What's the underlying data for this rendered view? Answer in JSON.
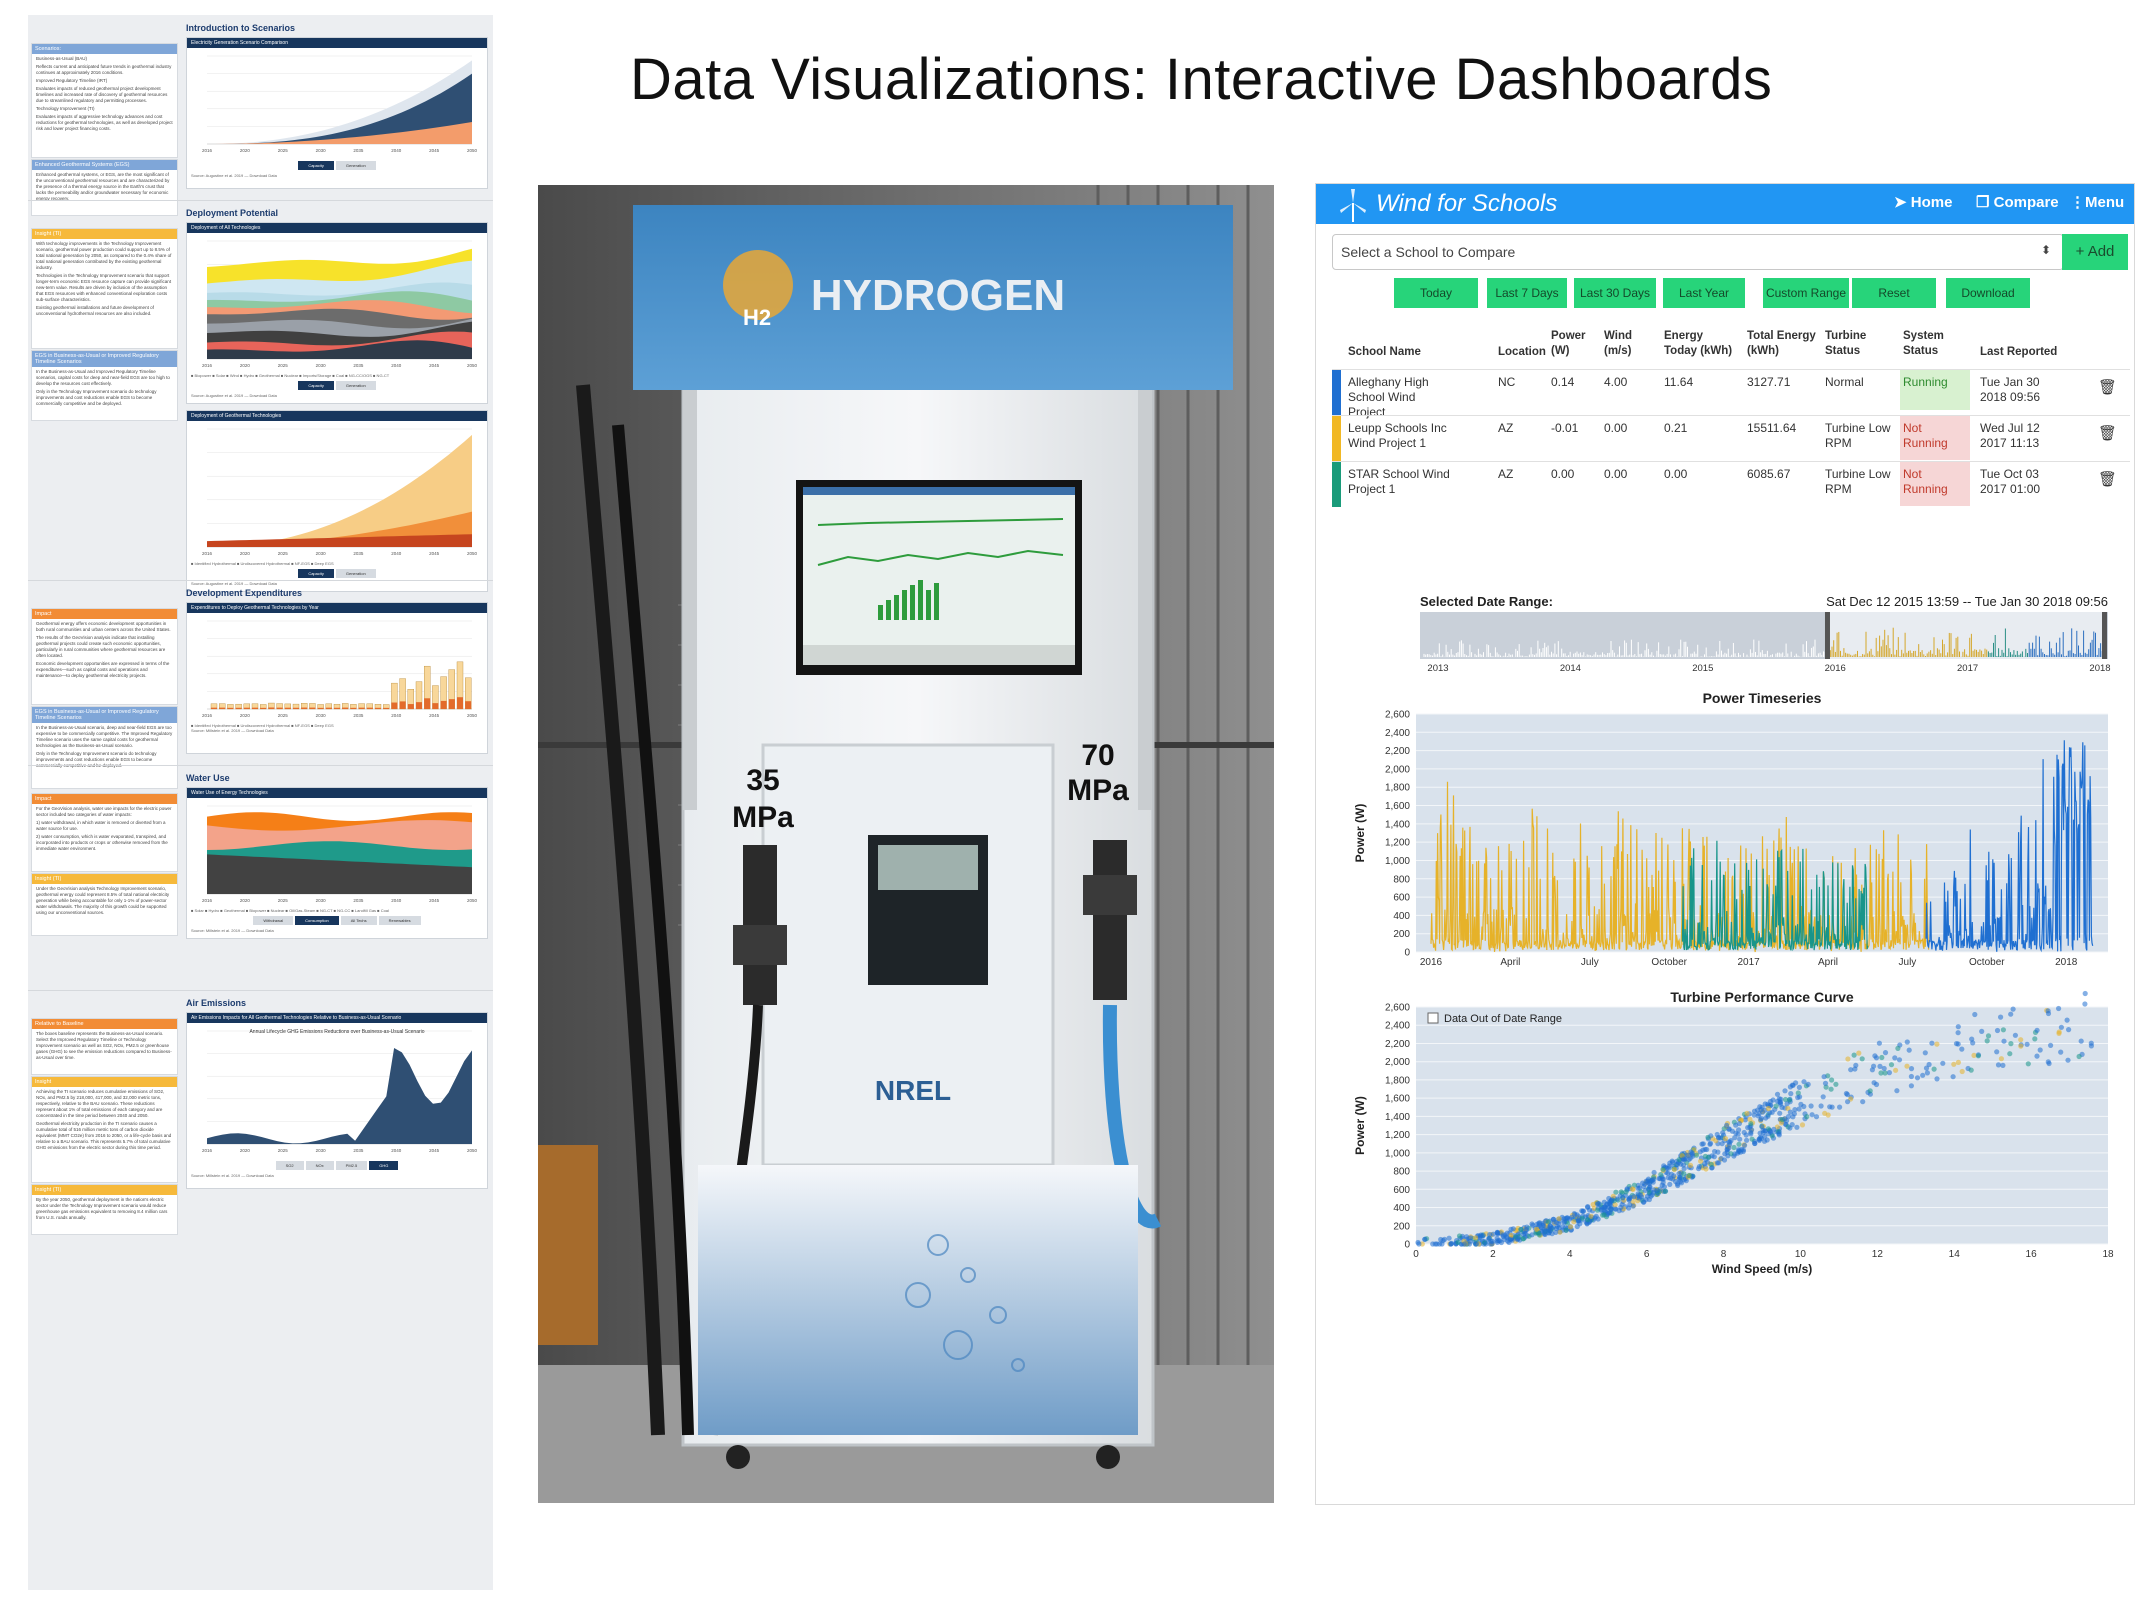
{
  "page": {
    "title": "Data Visualizations: Interactive Dashboards"
  },
  "left_report": {
    "sections": [
      {
        "title": "Introduction to Scenarios",
        "notes": [
          {
            "header": "Scenarios:",
            "color": "blue",
            "lines": [
              "Business-as-Usual (BAU)",
              "Reflects current and anticipated future trends in geothermal industry continues at approximately 2016 conditions.",
              "Improved Regulatory Timeline (IRT)",
              "Evaluates impacts of reduced geothermal project development timelines and increased rate of discovery of geothermal resources due to streamlined regulatory and permitting processes.",
              "Technology Improvement (TI)",
              "Evaluates impacts of aggressive technology advances and cost reductions for geothermal technologies, as well as developed project risk and lower project financing costs."
            ]
          },
          {
            "header": "Enhanced Geothermal Systems (EGS)",
            "color": "blue",
            "lines": [
              "Enhanced geothermal systems, or EGS, are the most significant of the unconventional geothermal resources and are characterized by the presence of a thermal energy source in the Earth's crust that lacks the permeability and/or groundwater necessary for economic energy recovery."
            ]
          }
        ],
        "card": {
          "header": "Electricity Generation Scenario Comparison",
          "tabs": [
            "Capacity",
            "Generation"
          ],
          "source": "Source: Augustine et al. 2019"
        }
      },
      {
        "title": "Deployment Potential",
        "notes": [
          {
            "header": "Insight (TI)",
            "color": "gold",
            "lines": [
              "With technology improvements in the Technology Improvement scenario, geothermal power production could support up to 8.5% of total national generation by 2050, as compared to the 0.4% share of total national generation contributed by the existing geothermal industry.",
              "Technologies in the Technology Improvement scenario that support longer-term economic EGS resource capture can provide significant new-term value. Results are driven by inclusion of the assumption that EGS resources with enhanced conventional exploration costs sub-surface characteristics.",
              "Existing geothermal installations and future development of unconventional hydrothermal resources are also included."
            ]
          },
          {
            "header": "EGS in Business-as-Usual or Improved Regulatory Timeline Scenarios",
            "color": "blue",
            "lines": [
              "In the Business-as-Usual and Improved Regulatory Timeline scenarios, capital costs for deep and near-field EGS are too high to develop the resources cost effectively.",
              "Only in the Technology Improvement scenario do technology improvements and cost reductions enable EGS to become commercially competitive and be deployed."
            ]
          }
        ],
        "cards": [
          {
            "header": "Deployment of All Technologies",
            "legend": [
              "Biopower",
              "Solar",
              "Wind",
              "Hydro",
              "Geothermal",
              "Nuclear",
              "Imports/Storage",
              "Coal",
              "NG-CC/OGS",
              "NG-CT"
            ],
            "tabs": [
              "Capacity",
              "Generation"
            ],
            "source": "Source: Augustine et al. 2019"
          },
          {
            "header": "Deployment of Geothermal Technologies",
            "legend": [
              "Identified Hydrothermal",
              "Undiscovered Hydrothermal",
              "NF-EGS",
              "Deep EGS"
            ],
            "tabs": [
              "Capacity",
              "Generation"
            ],
            "source": "Source: Augustine et al. 2019"
          }
        ]
      },
      {
        "title": "Development Expenditures",
        "notes": [
          {
            "header": "Impact",
            "color": "orange",
            "lines": [
              "Geothermal energy offers economic development opportunities in both rural communities and urban centers across the United States.",
              "The results of the GeoVision analysis indicate that installing geothermal projects could create such economic opportunities, particularly in rural communities where geothermal resources are often located.",
              "Economic development opportunities are expressed in terms of the expenditures—such as capital costs and operations and maintenance—to deploy geothermal electricity projects."
            ]
          },
          {
            "header": "EGS in Business-as-Usual or Improved Regulatory Timeline Scenarios",
            "color": "blue",
            "lines": [
              "In the Business-as-Usual scenario, deep and near-field EGS are too expensive to be commercially competitive. The Improved Regulatory Timeline scenario uses the same capital costs for geothermal technologies as the Business-as-Usual scenario.",
              "Only in the Technology Improvement scenario do technology improvements and cost reductions enable EGS to become commercially competitive and be deployed."
            ]
          }
        ],
        "card": {
          "header": "Expenditures to Deploy Geothermal Technologies by Year",
          "legend": [
            "Identified Hydrothermal",
            "Undiscovered Hydrothermal",
            "NF-EGS",
            "Deep EGS"
          ],
          "source": "Source: Millstein et al. 2019"
        }
      },
      {
        "title": "Water Use",
        "notes": [
          {
            "header": "Impact",
            "color": "orange",
            "lines": [
              "For the GeoVision analysis, water use impacts for the electric power sector included two categories of water impacts:",
              "1) water withdrawal, in which water is removed or diverted from a water source for use.",
              "2) water consumption, which is water evaporated, transpired, and incorporated into products or crops or otherwise removed from the immediate water environment."
            ]
          },
          {
            "header": "Insight (TI)",
            "color": "gold",
            "lines": [
              "Under the GeoVision analysis Technology Improvement scenario, geothermal energy could represent 8.5% of total national electricity generation while being accountable for only 1-1% of power-sector water withdrawals. The majority of this growth could be supported using our unconventional sources."
            ]
          }
        ],
        "card": {
          "header": "Water Use of Energy Technologies",
          "legend": [
            "Solar",
            "Hydro",
            "Geothermal",
            "Biopower",
            "Nuclear",
            "Oil/Gas-Steam",
            "NG-CT",
            "NG-CC",
            "Landfill Gas",
            "Coal"
          ],
          "tabs": [
            "Withdrawal",
            "Consumption",
            "All Techs",
            "Renewables"
          ],
          "source": "Source: Millstein et al. 2019"
        }
      },
      {
        "title": "Air Emissions",
        "notes": [
          {
            "header": "Relative to Baseline",
            "color": "orange",
            "lines": [
              "The boxes baseline represents the Business-as-Usual scenario. Select the Improved Regulatory Timeline or Technology Improvement scenario as well as SO2, NOx, PM2.5 or greenhouse gases (GHG) to see the emission reductions compared to Business-as-Usual over time."
            ]
          },
          {
            "header": "Insight",
            "color": "gold",
            "lines": [
              "Achieving the TI scenario reduces cumulative emissions of SO2, NOx, and PM2.5 by 218,000, 417,000, and 32,000 metric tons, respectively, relative to the BAU scenario. These reductions represent about 1% of total emissions of each category and are concentrated in the time period between 2040 and 2050.",
              "Geothermal electricity production in the TI scenario causes a cumulative total of 516 million metric tons of carbon dioxide equivalent (MMT CO2e) from 2016 to 2050, or a life-cycle basis and relative to a BAU scenario. This represents 5.7% of total cumulative GHG emissions from the electric sector during this time period."
            ]
          },
          {
            "header": "Insight (TI)",
            "color": "gold",
            "lines": [
              "By the year 2050, geothermal deployment in the nation's electric sector under the Technology Improvement scenario would reduce greenhouse gas emissions equivalent to removing 8.4 million cars from U.S. roads annually."
            ]
          }
        ],
        "card": {
          "header": "Air Emissions Impacts for All Geothermal Technologies Relative to Business-as-Usual Scenario",
          "subtitle": "Annual Lifecycle GHG Emissions Reductions over Business-as-Usual Scenario",
          "tabs": [
            "SO2",
            "NOx",
            "PM2.5",
            "GHG"
          ],
          "source": "Source: Millstein et al. 2019"
        }
      }
    ],
    "download_label": "Download Data",
    "year_ticks": [
      "2016",
      "2020",
      "2025",
      "2030",
      "2035",
      "2040",
      "2045",
      "2050"
    ]
  },
  "photo": {
    "sign": "HYDROGEN",
    "logo_sub": "H2",
    "left_nozzle_label": [
      "35",
      "MPa"
    ],
    "right_nozzle_label": [
      "70",
      "MPa"
    ],
    "brand": "NREL"
  },
  "app": {
    "brand": "Wind for Schools",
    "nav": [
      "Home",
      "Compare",
      "Menu"
    ],
    "select_placeholder": "Select a School to Compare",
    "add_label": "+ Add",
    "range_buttons": [
      "Today",
      "Last 7 Days",
      "Last 30 Days",
      "Last Year",
      "Custom Range",
      "Reset",
      "Download"
    ],
    "table": {
      "headers": [
        "School Name",
        "Location",
        "Power (W)",
        "Wind (m/s)",
        "Energy Today (kWh)",
        "Total Energy (kWh)",
        "Turbine Status",
        "System Status",
        "Last Reported"
      ],
      "rows": [
        {
          "color": "#1f6fd1",
          "name": "Alleghany High School Wind Project",
          "location": "NC",
          "power": "0.14",
          "wind": "4.00",
          "energy_today": "11.64",
          "total_energy": "3127.71",
          "turbine": "Normal",
          "system": "Running",
          "system_state": "running",
          "last": "Tue Jan 30 2018 09:56"
        },
        {
          "color": "#f1b824",
          "name": "Leupp Schools Inc Wind Project 1",
          "location": "AZ",
          "power": "-0.01",
          "wind": "0.00",
          "energy_today": "0.21",
          "total_energy": "15511.64",
          "turbine": "Turbine Low RPM",
          "system": "Not Running",
          "system_state": "not",
          "last": "Wed Jul 12 2017 11:13"
        },
        {
          "color": "#1a9b7a",
          "name": "STAR School Wind Project 1",
          "location": "AZ",
          "power": "0.00",
          "wind": "0.00",
          "energy_today": "0.00",
          "total_energy": "6085.67",
          "turbine": "Turbine Low RPM",
          "system": "Not Running",
          "system_state": "not",
          "last": "Tue Oct 03 2017 01:00"
        }
      ]
    },
    "range_selector": {
      "label": "Selected Date Range:",
      "range_text": "Sat Dec 12 2015 13:59 -- Tue Jan 30 2018 09:56",
      "ticks": [
        "2013",
        "2014",
        "2015",
        "2016",
        "2017",
        "2018"
      ]
    },
    "checkbox_label": "Data Out of Date Range"
  },
  "chart_data": [
    {
      "type": "line",
      "title": "Power Timeseries",
      "xlabel": "",
      "ylabel": "Power (W)",
      "ylim": [
        0,
        2600
      ],
      "yticks": [
        "0",
        "200",
        "400",
        "600",
        "800",
        "1,000",
        "1,200",
        "1,400",
        "1,600",
        "1,800",
        "2,000",
        "2,200",
        "2,400",
        "2,600"
      ],
      "xticks": [
        "2016",
        "April",
        "July",
        "October",
        "2017",
        "April",
        "July",
        "October",
        "2018"
      ],
      "series": [
        {
          "color": "#e6b229",
          "start_month": 0.0,
          "end_month": 18.8,
          "peak_values": [
            1900,
            1550,
            1430,
            1600,
            1200,
            1450,
            1560,
            1380,
            1420,
            1480,
            1260,
            1360,
            1480,
            1150,
            1150,
            1350,
            1300
          ]
        },
        {
          "color": "#18958a",
          "start_month": 9.5,
          "end_month": 16.5,
          "peak_values": [
            1150,
            1280,
            1060,
            1120,
            1180,
            1220,
            1050
          ]
        },
        {
          "color": "#1f6fd1",
          "start_month": 18.7,
          "end_month": 25.0,
          "peak_values": [
            600,
            900,
            1350,
            1250,
            1100,
            1550,
            2300,
            2350,
            2480
          ]
        }
      ]
    },
    {
      "type": "scatter",
      "title": "Turbine Performance Curve",
      "xlabel": "Wind Speed (m/s)",
      "ylabel": "Power (W)",
      "xlim": [
        0,
        18
      ],
      "ylim": [
        0,
        2600
      ],
      "xticks": [
        "0",
        "2",
        "4",
        "6",
        "8",
        "10",
        "12",
        "14",
        "16",
        "18"
      ],
      "yticks": [
        "0",
        "200",
        "400",
        "600",
        "800",
        "1,000",
        "1,200",
        "1,400",
        "1,600",
        "1,800",
        "2,000",
        "2,200",
        "2,400",
        "2,600"
      ],
      "curve": {
        "description": "power rises approximately with cube of wind speed",
        "points": [
          [
            0,
            0
          ],
          [
            2,
            50
          ],
          [
            4,
            230
          ],
          [
            6,
            600
          ],
          [
            8,
            1100
          ],
          [
            10,
            1550
          ],
          [
            12,
            1900
          ],
          [
            14,
            2150
          ],
          [
            16,
            2300
          ],
          [
            17.5,
            2400
          ]
        ]
      },
      "series_colors": [
        "#1f6fd1",
        "#e6b229",
        "#18958a"
      ]
    }
  ]
}
